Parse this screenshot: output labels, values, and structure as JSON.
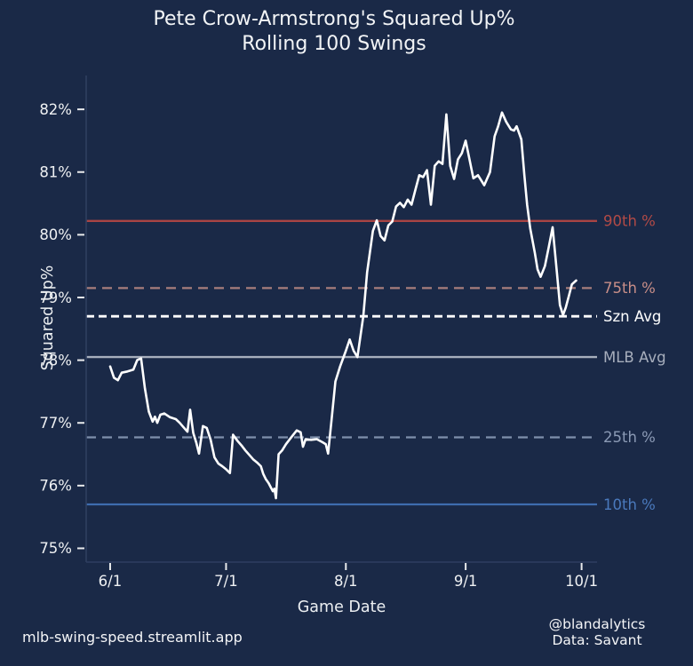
{
  "title": {
    "line1": "Pete Crow-Armstrong's Squared Up%",
    "line2": "Rolling 100 Swings"
  },
  "footer": {
    "site": "mlb-swing-speed.streamlit.app",
    "credit": "@blandalytics",
    "source": "Data: Savant"
  },
  "colors": {
    "background": "#1a2947",
    "spine": "#2e3e60",
    "tick": "#e8eaec",
    "tick_label": "#eef0f2",
    "data_line": "#ffffff"
  },
  "chart_data": {
    "type": "line",
    "title": "Pete Crow-Armstrong's Squared Up% Rolling 100 Swings",
    "xlabel": "Game Date",
    "ylabel": "Squared Up%",
    "x_unit": "days since 6/1",
    "x_domain": [
      -6.2,
      126
    ],
    "y_domain": [
      74.78,
      82.54
    ],
    "grid": false,
    "legend_position": "right-edge-labels",
    "x_ticks": [
      {
        "day": 0,
        "label": "6/1"
      },
      {
        "day": 30,
        "label": "7/1"
      },
      {
        "day": 61,
        "label": "8/1"
      },
      {
        "day": 92,
        "label": "9/1"
      },
      {
        "day": 122,
        "label": "10/1"
      }
    ],
    "y_ticks": [
      {
        "value": 75,
        "label": "75%"
      },
      {
        "value": 76,
        "label": "76%"
      },
      {
        "value": 77,
        "label": "77%"
      },
      {
        "value": 78,
        "label": "78%"
      },
      {
        "value": 79,
        "label": "79%"
      },
      {
        "value": 80,
        "label": "80%"
      },
      {
        "value": 81,
        "label": "81%"
      },
      {
        "value": 82,
        "label": "82%"
      }
    ],
    "reference_lines": [
      {
        "label": "90th %",
        "value": 80.22,
        "style": "solid",
        "color": "#a94444",
        "label_color": "#b24a46"
      },
      {
        "label": "75th %",
        "value": 79.15,
        "style": "dashed",
        "color": "#a87e7c",
        "label_color": "#c88e88"
      },
      {
        "label": "Szn Avg",
        "value": 78.7,
        "style": "dashed",
        "color": "#ffffff",
        "label_color": "#ffffff"
      },
      {
        "label": "MLB Avg",
        "value": 78.05,
        "style": "solid",
        "color": "#a7aebc",
        "label_color": "#a7aebc"
      },
      {
        "label": "25th %",
        "value": 76.77,
        "style": "dashed",
        "color": "#7f90ab",
        "label_color": "#8b9ab5"
      },
      {
        "label": "10th %",
        "value": 75.7,
        "style": "solid",
        "color": "#3e6cae",
        "label_color": "#4a79bc"
      }
    ],
    "series": [
      {
        "name": "Rolling 100-swing Squared Up%",
        "color": "#ffffff",
        "points": [
          [
            0,
            77.9
          ],
          [
            1,
            77.72
          ],
          [
            2,
            77.68
          ],
          [
            3,
            77.8
          ],
          [
            4.5,
            77.82
          ],
          [
            6,
            77.85
          ],
          [
            7,
            78.0
          ],
          [
            8,
            78.03
          ],
          [
            9,
            77.55
          ],
          [
            10,
            77.18
          ],
          [
            11,
            77.02
          ],
          [
            11.6,
            77.1
          ],
          [
            12.2,
            77.0
          ],
          [
            13,
            77.13
          ],
          [
            14,
            77.15
          ],
          [
            15.5,
            77.09
          ],
          [
            17,
            77.06
          ],
          [
            18,
            77.0
          ],
          [
            19,
            76.93
          ],
          [
            20,
            76.86
          ],
          [
            20.7,
            77.21
          ],
          [
            21.5,
            76.84
          ],
          [
            22.3,
            76.68
          ],
          [
            23,
            76.51
          ],
          [
            24,
            76.95
          ],
          [
            25,
            76.92
          ],
          [
            26,
            76.73
          ],
          [
            27,
            76.45
          ],
          [
            28,
            76.35
          ],
          [
            29,
            76.31
          ],
          [
            30,
            76.26
          ],
          [
            31,
            76.2
          ],
          [
            31.8,
            76.81
          ],
          [
            33,
            76.71
          ],
          [
            34,
            76.64
          ],
          [
            35,
            76.56
          ],
          [
            36,
            76.49
          ],
          [
            37,
            76.42
          ],
          [
            38,
            76.37
          ],
          [
            39,
            76.31
          ],
          [
            39.6,
            76.19
          ],
          [
            40.3,
            76.1
          ],
          [
            41,
            76.04
          ],
          [
            41.6,
            75.97
          ],
          [
            42.1,
            75.91
          ],
          [
            42.5,
            75.95
          ],
          [
            42.9,
            75.8
          ],
          [
            43.6,
            76.5
          ],
          [
            44.5,
            76.56
          ],
          [
            45.5,
            76.66
          ],
          [
            46.5,
            76.74
          ],
          [
            47.5,
            76.82
          ],
          [
            48.3,
            76.88
          ],
          [
            49.3,
            76.85
          ],
          [
            49.9,
            76.62
          ],
          [
            50.6,
            76.74
          ],
          [
            52,
            76.73
          ],
          [
            53.5,
            76.74
          ],
          [
            55,
            76.69
          ],
          [
            55.8,
            76.66
          ],
          [
            56.4,
            76.51
          ],
          [
            57.3,
            77.05
          ],
          [
            58.3,
            77.66
          ],
          [
            59.5,
            77.9
          ],
          [
            61,
            78.15
          ],
          [
            62,
            78.33
          ],
          [
            63,
            78.15
          ],
          [
            64,
            78.05
          ],
          [
            65.5,
            78.7
          ],
          [
            66.5,
            79.4
          ],
          [
            68,
            80.06
          ],
          [
            69,
            80.23
          ],
          [
            70,
            79.98
          ],
          [
            71,
            79.91
          ],
          [
            72,
            80.15
          ],
          [
            73,
            80.21
          ],
          [
            74,
            80.45
          ],
          [
            75,
            80.51
          ],
          [
            76,
            80.44
          ],
          [
            77,
            80.56
          ],
          [
            78,
            80.48
          ],
          [
            79,
            80.72
          ],
          [
            80,
            80.95
          ],
          [
            81,
            80.92
          ],
          [
            82,
            81.03
          ],
          [
            83,
            80.48
          ],
          [
            84,
            81.1
          ],
          [
            85,
            81.17
          ],
          [
            86,
            81.13
          ],
          [
            87,
            81.92
          ],
          [
            88,
            81.1
          ],
          [
            89,
            80.89
          ],
          [
            90,
            81.2
          ],
          [
            91,
            81.3
          ],
          [
            92,
            81.5
          ],
          [
            94,
            80.9
          ],
          [
            95.2,
            80.95
          ],
          [
            96.8,
            80.79
          ],
          [
            98.3,
            81.0
          ],
          [
            99.5,
            81.57
          ],
          [
            100.4,
            81.73
          ],
          [
            101.4,
            81.95
          ],
          [
            102.5,
            81.8
          ],
          [
            103.7,
            81.68
          ],
          [
            104.5,
            81.66
          ],
          [
            105.2,
            81.73
          ],
          [
            106.4,
            81.52
          ],
          [
            107.2,
            80.95
          ],
          [
            107.9,
            80.48
          ],
          [
            108.7,
            80.1
          ],
          [
            109.9,
            79.71
          ],
          [
            110.6,
            79.45
          ],
          [
            111.4,
            79.33
          ],
          [
            112.5,
            79.5
          ],
          [
            113.5,
            79.8
          ],
          [
            114.5,
            80.12
          ],
          [
            115.6,
            79.4
          ],
          [
            116.4,
            78.88
          ],
          [
            117.2,
            78.72
          ],
          [
            117.9,
            78.84
          ],
          [
            118.7,
            79.02
          ],
          [
            119.5,
            79.21
          ],
          [
            120.6,
            79.27
          ]
        ]
      }
    ]
  }
}
